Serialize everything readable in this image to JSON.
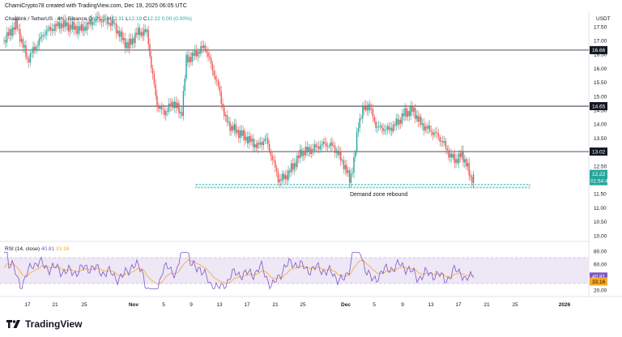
{
  "header": {
    "created_by": "ChamiCrypto78 created with TradingView.com, Dec 19, 2025 06:05 UTC"
  },
  "symbol_legend": {
    "symbol": "Chainlink / TetherUS · 4h · Binance",
    "o_label": "O",
    "o_value": "12.22",
    "h_label": "H",
    "h_value": "12.31",
    "l_label": "L",
    "l_value": "12.19",
    "c_label": "C",
    "c_value": "12.22",
    "change": "0.00 (0.00%)"
  },
  "price_axis": {
    "unit": "USDT",
    "ticks": [
      17.5,
      17.0,
      16.5,
      16.0,
      15.5,
      15.0,
      14.5,
      14.0,
      13.5,
      13.0,
      12.5,
      12.0,
      11.5,
      11.0,
      10.5,
      10.0
    ],
    "tick_labels": [
      "17.50",
      "17.00",
      "16.50",
      "16.00",
      "15.50",
      "15.00",
      "14.50",
      "14.00",
      "13.50",
      "13.00",
      "12.50",
      "12.00",
      "11.50",
      "11.00",
      "10.50",
      "10.00"
    ]
  },
  "levels": [
    {
      "value": 16.66,
      "label": "16.66"
    },
    {
      "value": 14.65,
      "label": "14.65"
    },
    {
      "value": 13.02,
      "label": "13.02"
    }
  ],
  "current_price": {
    "value": 12.22,
    "label": "12.22",
    "countdown": "01:54:43",
    "color": "#26a69a"
  },
  "demand_zone": {
    "low": 11.72,
    "high": 11.85,
    "label": "Demand zone rebound"
  },
  "rsi": {
    "title": "RSI (14, close)",
    "rsi_value": "40.81",
    "ma_value": "33.16",
    "axis_ticks": [
      "80.00",
      "60.00",
      "20.00"
    ],
    "band_upper": 70,
    "band_lower": 30,
    "rsi_color": "#7e57c2",
    "ma_color": "#f9a825"
  },
  "x_axis": {
    "labels": [
      "17",
      "21",
      "25",
      "Nov",
      "5",
      "9",
      "13",
      "17",
      "21",
      "25",
      "Dec",
      "5",
      "9",
      "13",
      "17",
      "21",
      "25",
      "2026"
    ]
  },
  "colors": {
    "up": "#26a69a",
    "down": "#ef5350",
    "level_line": "#131722",
    "zone_fill": "#e0f7fa",
    "zone_border": "#26a69a",
    "rsi_band": "#ede7f6"
  },
  "brand": {
    "name": "TradingView"
  }
}
